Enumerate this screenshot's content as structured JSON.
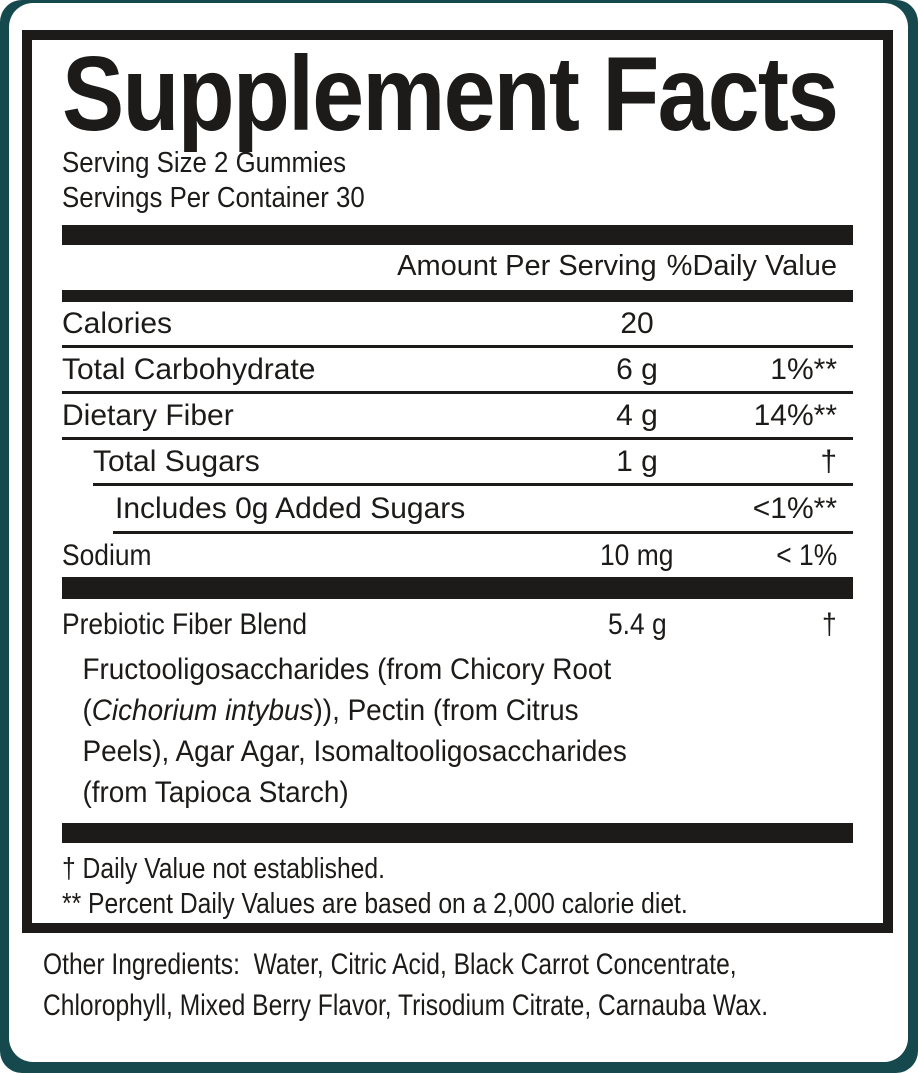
{
  "colors": {
    "background_teal": "#15494d",
    "card_white": "#ffffff",
    "ink_black": "#1d1b19"
  },
  "supplement_facts": {
    "title": "Supplement Facts",
    "serving_size": "Serving Size 2 Gummies",
    "servings_per_container": "Servings Per Container 30",
    "column_headers": {
      "amount": "Amount Per Serving",
      "daily_value": "%Daily Value"
    },
    "rows": [
      {
        "name": "Calories",
        "amount": "20",
        "dv": "",
        "indent": 0,
        "condensed": false
      },
      {
        "name": "Total Carbohydrate",
        "amount": "6 g",
        "dv": "1%**",
        "indent": 0,
        "condensed": false
      },
      {
        "name": "Dietary Fiber",
        "amount": "4 g",
        "dv": "14%**",
        "indent": 0,
        "condensed": false
      },
      {
        "name": "Total Sugars",
        "amount": "1 g",
        "dv": "†",
        "indent": 1,
        "condensed": false
      },
      {
        "name": "Includes 0g Added Sugars",
        "amount": "",
        "dv": "<1%**",
        "indent": 2,
        "condensed": false
      },
      {
        "name": "Sodium",
        "amount": "10 mg",
        "dv": "< 1%",
        "indent": 0,
        "condensed": true
      }
    ],
    "blend": {
      "name": "Prebiotic Fiber Blend",
      "amount": "5.4 g",
      "dv": "†",
      "description_parts": [
        {
          "text": "Fructooligosaccharides (from Chicory Root",
          "italic": false,
          "break_after": true
        },
        {
          "text": "(",
          "italic": false,
          "break_after": false
        },
        {
          "text": "Cichorium intybus",
          "italic": true,
          "break_after": false
        },
        {
          "text": ")), Pectin (from Citrus",
          "italic": false,
          "break_after": true
        },
        {
          "text": "Peels), Agar Agar, Isomaltooligosaccharides",
          "italic": false,
          "break_after": true
        },
        {
          "text": "(from Tapioca Starch)",
          "italic": false,
          "break_after": false
        }
      ]
    },
    "footnotes": [
      "† Daily Value not established.",
      "** Percent Daily Values are based on a 2,000 calorie diet."
    ],
    "other_ingredients": {
      "label": "Other Ingredients:",
      "text": "Water, Citric Acid, Black Carrot Concentrate, Chlorophyll, Mixed Berry Flavor, Trisodium Citrate, Carnauba Wax."
    }
  }
}
